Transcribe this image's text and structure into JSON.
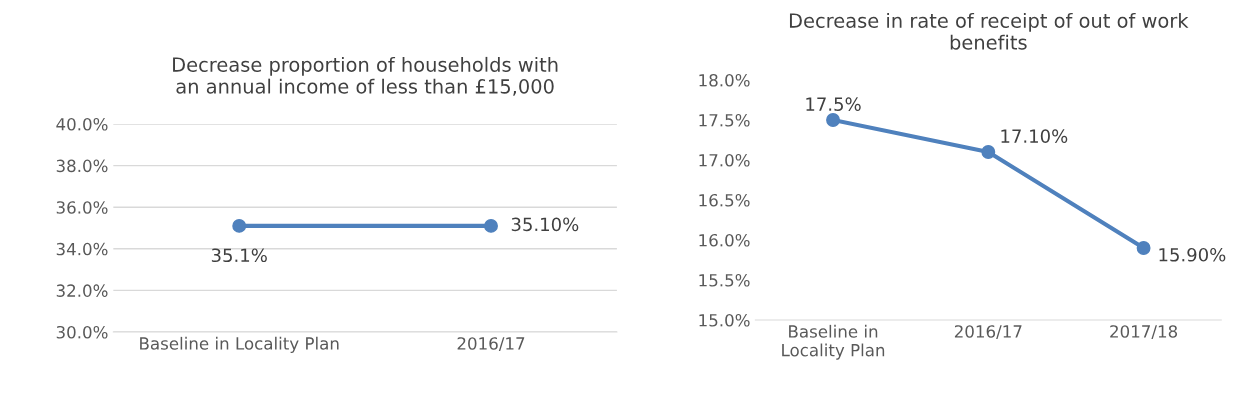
{
  "chart_data": [
    {
      "type": "line",
      "title": "Decrease proportion of households with\nan annual income of less than £15,000",
      "categories": [
        "Baseline in Locality Plan",
        "2016/17"
      ],
      "series": [
        {
          "color": "#4f81bd",
          "values": [
            35.1,
            35.1
          ],
          "value_labels": [
            "35.1%",
            "35.10%"
          ]
        }
      ],
      "ylim": [
        30,
        40
      ],
      "yticks": [
        {
          "value": 30,
          "label": "30.0%"
        },
        {
          "value": 32,
          "label": "32.0%"
        },
        {
          "value": 34,
          "label": "34.0%"
        },
        {
          "value": 36,
          "label": "36.0%"
        },
        {
          "value": 38,
          "label": "38.0%"
        },
        {
          "value": 40,
          "label": "40.0%"
        }
      ],
      "grid": "y",
      "marker": "circle",
      "line_style": "solid",
      "legend": false
    },
    {
      "type": "line",
      "title": "Decrease in rate of receipt of out of work\nbenefits",
      "categories": [
        "Baseline in\nLocality Plan",
        "2016/17",
        "2017/18"
      ],
      "series": [
        {
          "color": "#4f81bd",
          "values": [
            17.5,
            17.1,
            15.9
          ],
          "value_labels": [
            "17.5%",
            "17.10%",
            "15.90%"
          ]
        }
      ],
      "ylim": [
        15,
        18
      ],
      "yticks": [
        {
          "value": 15,
          "label": "15.0%"
        },
        {
          "value": 15.5,
          "label": "15.5%"
        },
        {
          "value": 16,
          "label": "16.0%"
        },
        {
          "value": 16.5,
          "label": "16.5%"
        },
        {
          "value": 17,
          "label": "17.0%"
        },
        {
          "value": 17.5,
          "label": "17.5%"
        },
        {
          "value": 18,
          "label": "18.0%"
        }
      ],
      "grid": false,
      "marker": "circle",
      "line_style": "solid",
      "legend": false
    }
  ]
}
